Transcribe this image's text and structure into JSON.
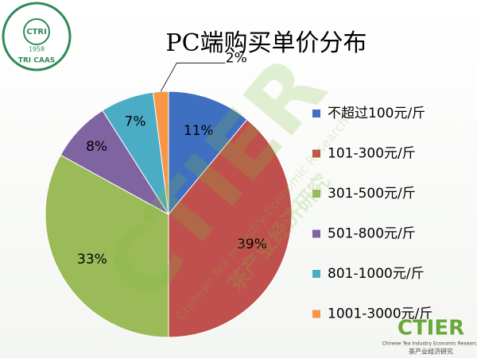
{
  "chart_data": {
    "type": "pie",
    "title": "PC端购买单价分布",
    "categories": [
      "不超过100元/斤",
      "101-300元/斤",
      "301-500元/斤",
      "501-800元/斤",
      "801-1000元/斤",
      "1001-3000元/斤"
    ],
    "values": [
      11,
      39,
      33,
      8,
      7,
      2
    ],
    "value_labels": [
      "11%",
      "39%",
      "33%",
      "8%",
      "7%",
      "2%"
    ],
    "colors": [
      "#3f6fc0",
      "#c0504d",
      "#9bbb59",
      "#8064a2",
      "#4bacc6",
      "#f79646"
    ],
    "legend": "right"
  },
  "logos": {
    "top_left": {
      "name": "CTRI",
      "year": "1958",
      "caption": "TRI CAAS"
    },
    "bottom_right": {
      "name": "CTIER",
      "english": "Chinese Tea Industry Economic Research",
      "chinese": "茶产业经济研究"
    }
  }
}
